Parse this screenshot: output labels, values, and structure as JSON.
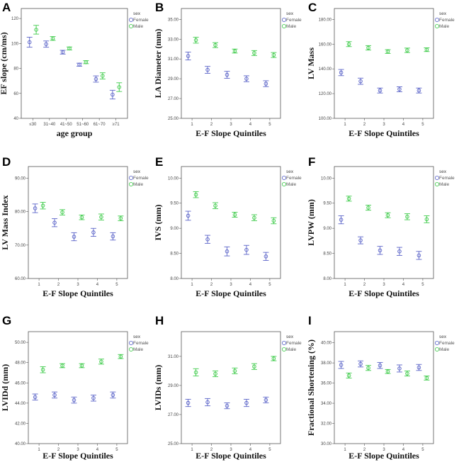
{
  "colors": {
    "female": "#5a63c8",
    "male": "#3ecb4a"
  },
  "chart_data": [
    {
      "panel": "A",
      "type": "scatter",
      "error_bars": true,
      "xlabel": "age group",
      "ylabel": "EF slope (cm/ms)",
      "categories": [
        "≤30",
        "31~40",
        "41~50",
        "51~60",
        "61~70",
        "≥71"
      ],
      "ylim": [
        40,
        128
      ],
      "yticks": [
        40,
        60,
        80,
        100,
        120
      ],
      "ytick_labels": [
        "40",
        "60",
        "80",
        "100",
        "120"
      ],
      "legend": {
        "title": "sex",
        "position": "right"
      },
      "series": [
        {
          "name": "Female",
          "values": [
            101,
            99.5,
            93,
            83,
            71.5,
            59
          ],
          "err": [
            4,
            2.5,
            1.5,
            1.2,
            2.5,
            3.5
          ]
        },
        {
          "name": "Male",
          "values": [
            111,
            104,
            96,
            85,
            74,
            65
          ],
          "err": [
            3.5,
            1.5,
            1.2,
            1.2,
            2.5,
            3.5
          ]
        }
      ]
    },
    {
      "panel": "B",
      "type": "scatter",
      "error_bars": true,
      "xlabel": "E-F Slope Quintiles",
      "ylabel": "LA Diameter (mm)",
      "categories": [
        "1",
        "2",
        "3",
        "4",
        "5"
      ],
      "ylim": [
        25,
        36.1
      ],
      "yticks": [
        25,
        27,
        29,
        31,
        33,
        35
      ],
      "ytick_labels": [
        "25.00",
        "27.00",
        "29.00",
        "31.00",
        "33.00",
        "35.00"
      ],
      "legend": {
        "title": "sex",
        "position": "right"
      },
      "series": [
        {
          "name": "Female",
          "values": [
            31.3,
            29.9,
            29.4,
            29.0,
            28.5
          ],
          "err": [
            0.4,
            0.35,
            0.35,
            0.3,
            0.3
          ]
        },
        {
          "name": "Male",
          "values": [
            32.9,
            32.4,
            31.8,
            31.6,
            31.4
          ],
          "err": [
            0.3,
            0.25,
            0.2,
            0.25,
            0.25
          ]
        }
      ]
    },
    {
      "panel": "C",
      "type": "scatter",
      "error_bars": true,
      "xlabel": "E-F Slope Quintiles",
      "ylabel": "LV Mass",
      "categories": [
        "1",
        "2",
        "3",
        "4",
        "5"
      ],
      "ylim": [
        100,
        188.8
      ],
      "yticks": [
        100,
        120,
        140,
        160,
        180
      ],
      "ytick_labels": [
        "100.00",
        "120.00",
        "140.00",
        "160.00",
        "180.00"
      ],
      "legend": {
        "title": "sex",
        "position": "right"
      },
      "series": [
        {
          "name": "Female",
          "values": [
            137,
            130,
            122.5,
            123.5,
            122.5
          ],
          "err": [
            2.5,
            2.5,
            2,
            2,
            2
          ]
        },
        {
          "name": "Male",
          "values": [
            160,
            157,
            154,
            155,
            155.5
          ],
          "err": [
            2,
            1.8,
            1.5,
            1.8,
            1.5
          ]
        }
      ]
    },
    {
      "panel": "D",
      "type": "scatter",
      "error_bars": true,
      "xlabel": "E-F Slope Quintiles",
      "ylabel": "LV Mass Index",
      "categories": [
        "1",
        "2",
        "3",
        "4",
        "5"
      ],
      "ylim": [
        60,
        93.5
      ],
      "yticks": [
        60,
        70,
        80,
        90
      ],
      "ytick_labels": [
        "60.00",
        "70.00",
        "80.00",
        "90.00"
      ],
      "legend": {
        "title": "sex",
        "position": "right"
      },
      "series": [
        {
          "name": "Female",
          "values": [
            81,
            76.7,
            72.5,
            73.8,
            72.6
          ],
          "err": [
            1.3,
            1.2,
            1.2,
            1.2,
            1.1
          ]
        },
        {
          "name": "Male",
          "values": [
            81.8,
            79.8,
            78.3,
            78.4,
            78
          ],
          "err": [
            1,
            0.8,
            0.7,
            0.9,
            0.7
          ]
        }
      ]
    },
    {
      "panel": "E",
      "type": "scatter",
      "error_bars": true,
      "xlabel": "E-F Slope Quintiles",
      "ylabel": "IVS (mm)",
      "categories": [
        "1",
        "2",
        "3",
        "4",
        "5"
      ],
      "ylim": [
        8,
        10.23
      ],
      "yticks": [
        8,
        8.5,
        9,
        9.5,
        10
      ],
      "ytick_labels": [
        "8.00",
        "8.50",
        "9.00",
        "9.50",
        "10.00"
      ],
      "legend": {
        "title": "sex",
        "position": "right"
      },
      "series": [
        {
          "name": "Female",
          "values": [
            9.25,
            8.78,
            8.54,
            8.57,
            8.44
          ],
          "err": [
            0.09,
            0.08,
            0.09,
            0.09,
            0.08
          ]
        },
        {
          "name": "Male",
          "values": [
            9.67,
            9.45,
            9.27,
            9.21,
            9.15
          ],
          "err": [
            0.06,
            0.06,
            0.05,
            0.06,
            0.06
          ]
        }
      ]
    },
    {
      "panel": "F",
      "type": "scatter",
      "error_bars": true,
      "xlabel": "E-F Slope Quintiles",
      "ylabel": "LVPW (mm)",
      "categories": [
        "1",
        "2",
        "3",
        "4",
        "5"
      ],
      "ylim": [
        8,
        10.23
      ],
      "yticks": [
        8,
        8.5,
        9,
        9.5,
        10
      ],
      "ytick_labels": [
        "8.00",
        "8.50",
        "9.00",
        "9.50",
        "10.00"
      ],
      "legend": {
        "title": "sex",
        "position": "right"
      },
      "series": [
        {
          "name": "Female",
          "values": [
            9.17,
            8.76,
            8.56,
            8.54,
            8.46
          ],
          "err": [
            0.08,
            0.07,
            0.08,
            0.08,
            0.08
          ]
        },
        {
          "name": "Male",
          "values": [
            9.59,
            9.41,
            9.26,
            9.23,
            9.18
          ],
          "err": [
            0.05,
            0.05,
            0.05,
            0.06,
            0.07
          ]
        }
      ]
    },
    {
      "panel": "G",
      "type": "scatter",
      "error_bars": true,
      "xlabel": "E-F Slope Quintiles",
      "ylabel": "LVIDd (mm)",
      "categories": [
        "1",
        "2",
        "3",
        "4",
        "5"
      ],
      "ylim": [
        40,
        51.06
      ],
      "yticks": [
        40,
        42,
        44,
        46,
        48,
        50
      ],
      "ytick_labels": [
        "40.00",
        "42.00",
        "44.00",
        "46.00",
        "48.00",
        "50.00"
      ],
      "legend": {
        "title": "sex",
        "position": "right"
      },
      "series": [
        {
          "name": "Female",
          "values": [
            44.6,
            44.8,
            44.3,
            44.5,
            44.8
          ],
          "err": [
            0.3,
            0.3,
            0.3,
            0.3,
            0.3
          ]
        },
        {
          "name": "Male",
          "values": [
            47.3,
            47.7,
            47.7,
            48.1,
            48.6
          ],
          "err": [
            0.3,
            0.2,
            0.2,
            0.25,
            0.2
          ]
        }
      ]
    },
    {
      "panel": "H",
      "type": "scatter",
      "error_bars": true,
      "xlabel": "E-F Slope Quintiles",
      "ylabel": "LVIDs (mm)",
      "categories": [
        "1",
        "2",
        "3",
        "4",
        "5"
      ],
      "ylim": [
        25,
        32.7
      ],
      "yticks": [
        25,
        27,
        29,
        31
      ],
      "ytick_labels": [
        "25.00",
        "27.00",
        "29.00",
        "31.00"
      ],
      "legend": {
        "title": "sex",
        "position": "right"
      },
      "series": [
        {
          "name": "Female",
          "values": [
            27.8,
            27.85,
            27.6,
            27.8,
            28.0
          ],
          "err": [
            0.25,
            0.25,
            0.2,
            0.25,
            0.2
          ]
        },
        {
          "name": "Male",
          "values": [
            29.9,
            29.8,
            30.0,
            30.3,
            30.85
          ],
          "err": [
            0.25,
            0.2,
            0.2,
            0.2,
            0.15
          ]
        }
      ]
    },
    {
      "panel": "I",
      "type": "scatter",
      "error_bars": true,
      "xlabel": "E-F Slope Quintiles",
      "ylabel": "Fractional Shortening (%)",
      "categories": [
        "1",
        "2",
        "3",
        "4",
        "5"
      ],
      "ylim": [
        30,
        41.1
      ],
      "yticks": [
        30,
        32,
        34,
        36,
        38,
        40
      ],
      "ytick_labels": [
        "30.00",
        "32.00",
        "34.00",
        "36.00",
        "38.00",
        "40.00"
      ],
      "legend": {
        "title": "sex",
        "position": "right"
      },
      "series": [
        {
          "name": "Female",
          "values": [
            37.8,
            37.9,
            37.75,
            37.45,
            37.55
          ],
          "err": [
            0.35,
            0.3,
            0.3,
            0.35,
            0.3
          ]
        },
        {
          "name": "Male",
          "values": [
            36.75,
            37.5,
            37.15,
            36.95,
            36.5
          ],
          "err": [
            0.25,
            0.25,
            0.2,
            0.25,
            0.2
          ]
        }
      ]
    }
  ]
}
